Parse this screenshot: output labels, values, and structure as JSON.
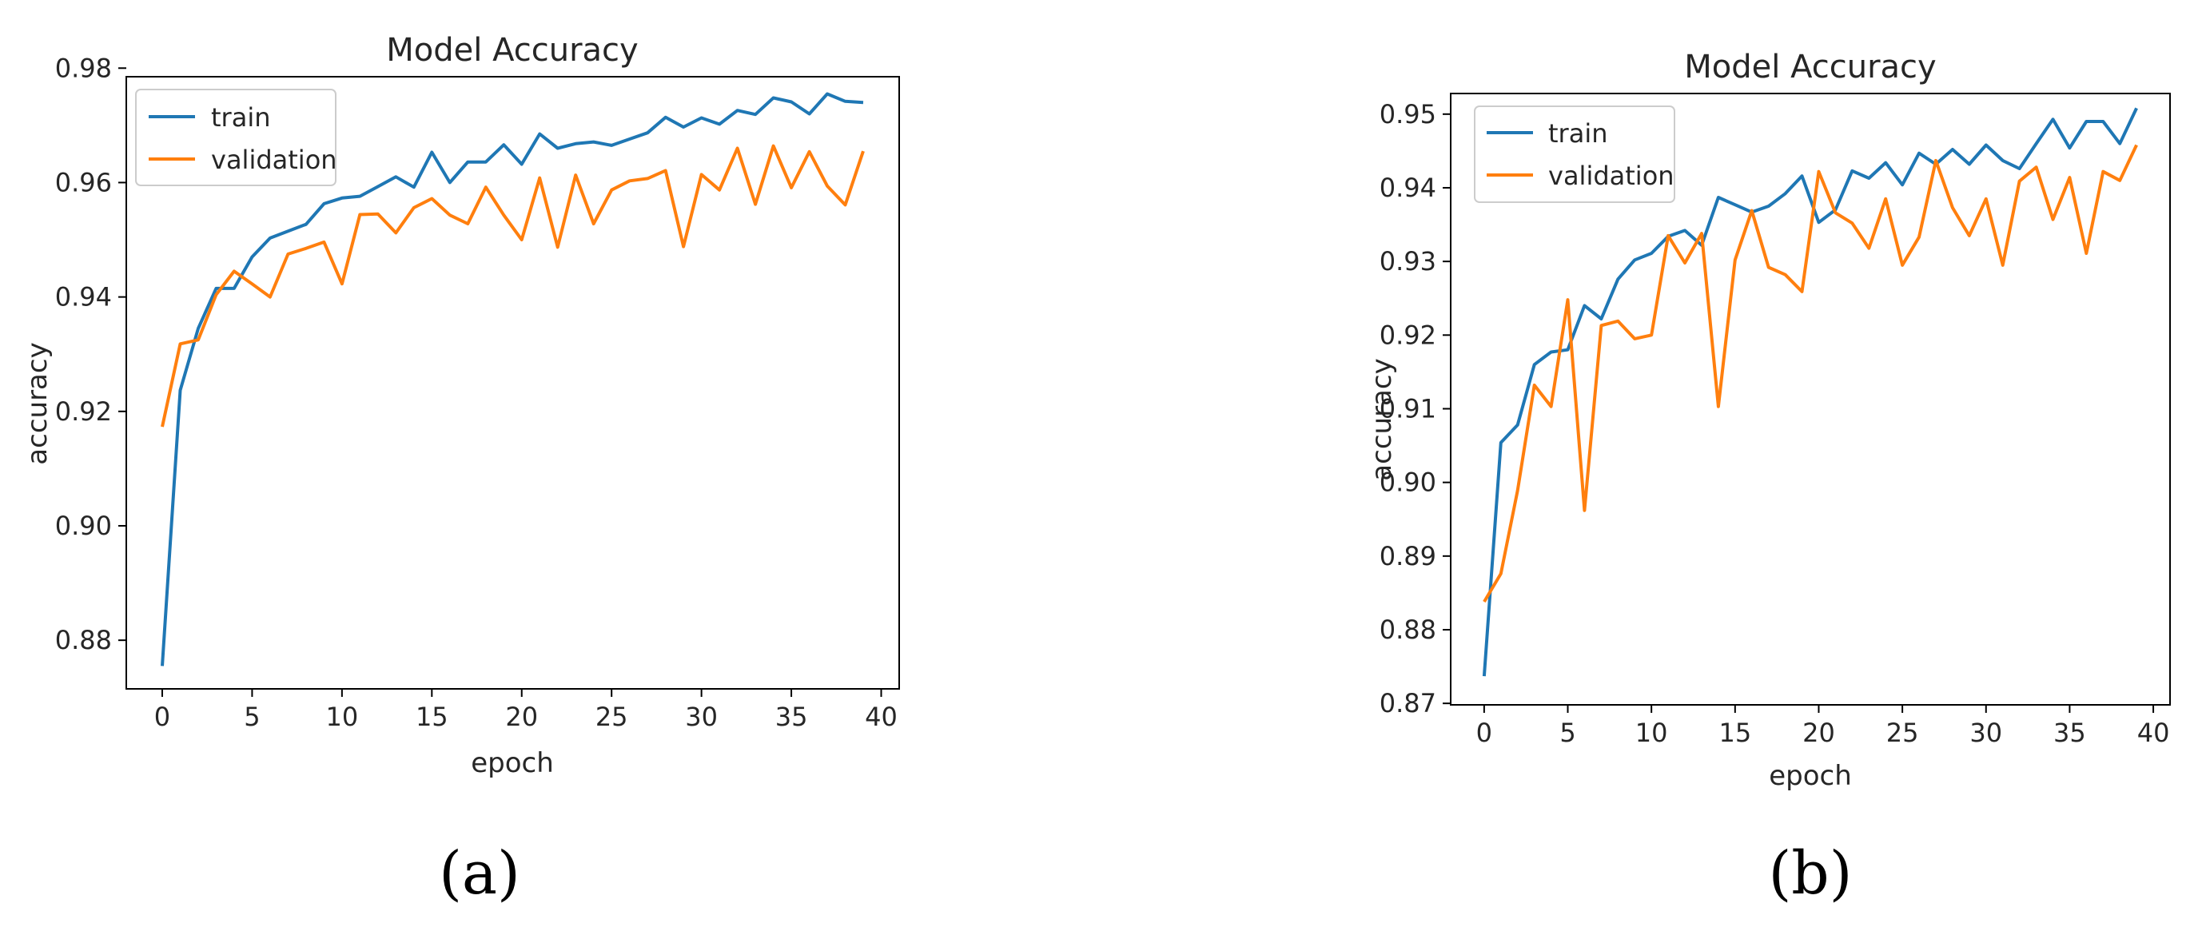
{
  "colors": {
    "train": "#1f77b4",
    "validation": "#ff7f0e"
  },
  "chart_data": [
    {
      "type": "line",
      "title": "Model Accuracy",
      "xlabel": "epoch",
      "ylabel": "accuracy",
      "xlim": [
        -2,
        41
      ],
      "ylim": [
        0.8715,
        0.9785
      ],
      "xticks": [
        0,
        5,
        10,
        15,
        20,
        25,
        30,
        35,
        40
      ],
      "yticks": [
        0.88,
        0.9,
        0.92,
        0.94,
        0.96,
        0.98
      ],
      "ytick_labels": [
        "0.88",
        "0.90",
        "0.92",
        "0.94",
        "0.96",
        "0.98"
      ],
      "legend_placement": "upper-left",
      "caption": "(a)",
      "x": [
        0,
        1,
        2,
        3,
        4,
        5,
        6,
        7,
        8,
        9,
        10,
        11,
        12,
        13,
        14,
        15,
        16,
        17,
        18,
        19,
        20,
        21,
        22,
        23,
        24,
        25,
        26,
        27,
        28,
        29,
        30,
        31,
        32,
        33,
        34,
        35,
        36,
        37,
        38,
        39
      ],
      "series": [
        {
          "name": "train",
          "color": "#1f77b4",
          "values": [
            0.8755,
            0.9237,
            0.9345,
            0.9415,
            0.9415,
            0.947,
            0.9503,
            0.9515,
            0.9527,
            0.9563,
            0.9573,
            0.9576,
            0.9593,
            0.961,
            0.9592,
            0.9653,
            0.96,
            0.9636,
            0.9636,
            0.9666,
            0.9632,
            0.9685,
            0.966,
            0.9668,
            0.9671,
            0.9665,
            0.9676,
            0.9687,
            0.9714,
            0.9697,
            0.9713,
            0.9702,
            0.9726,
            0.9719,
            0.9748,
            0.9741,
            0.972,
            0.9755,
            0.9742,
            0.974
          ]
        },
        {
          "name": "validation",
          "color": "#ff7f0e",
          "values": [
            0.9173,
            0.9318,
            0.9325,
            0.9404,
            0.9445,
            0.9423,
            0.94,
            0.9475,
            0.9485,
            0.9496,
            0.9423,
            0.9544,
            0.9545,
            0.9512,
            0.9556,
            0.9572,
            0.9543,
            0.9528,
            0.9592,
            0.9543,
            0.95,
            0.9608,
            0.9487,
            0.9613,
            0.9528,
            0.9587,
            0.9603,
            0.9607,
            0.9621,
            0.9488,
            0.9614,
            0.9587,
            0.966,
            0.9562,
            0.9664,
            0.9591,
            0.9654,
            0.9594,
            0.9561,
            0.9655
          ]
        }
      ]
    },
    {
      "type": "line",
      "title": "Model Accuracy",
      "xlabel": "epoch",
      "ylabel": "accuracy",
      "xlim": [
        -2,
        41
      ],
      "ylim": [
        0.8698,
        0.9528
      ],
      "xticks": [
        0,
        5,
        10,
        15,
        20,
        25,
        30,
        35,
        40
      ],
      "yticks": [
        0.87,
        0.88,
        0.89,
        0.9,
        0.91,
        0.92,
        0.93,
        0.94,
        0.95
      ],
      "ytick_labels": [
        "0.87",
        "0.88",
        "0.89",
        "0.90",
        "0.91",
        "0.92",
        "0.93",
        "0.94",
        "0.95"
      ],
      "legend_placement": "upper-left",
      "caption": "(b)",
      "x": [
        0,
        1,
        2,
        3,
        4,
        5,
        6,
        7,
        8,
        9,
        10,
        11,
        12,
        13,
        14,
        15,
        16,
        17,
        18,
        19,
        20,
        21,
        22,
        23,
        24,
        25,
        26,
        27,
        28,
        29,
        30,
        31,
        32,
        33,
        34,
        35,
        36,
        37,
        38,
        39
      ],
      "series": [
        {
          "name": "train",
          "color": "#1f77b4",
          "values": [
            0.8737,
            0.9054,
            0.9078,
            0.916,
            0.9177,
            0.918,
            0.924,
            0.9222,
            0.9276,
            0.9302,
            0.9311,
            0.9334,
            0.9342,
            0.9322,
            0.9387,
            0.9377,
            0.9367,
            0.9375,
            0.9392,
            0.9416,
            0.9353,
            0.937,
            0.9423,
            0.9413,
            0.9434,
            0.9404,
            0.9447,
            0.9432,
            0.9452,
            0.9432,
            0.9458,
            0.9437,
            0.9426,
            0.946,
            0.9493,
            0.9454,
            0.949,
            0.949,
            0.946,
            0.9508
          ]
        },
        {
          "name": "validation",
          "color": "#ff7f0e",
          "values": [
            0.8838,
            0.8876,
            0.8989,
            0.9132,
            0.9103,
            0.9248,
            0.8962,
            0.9213,
            0.9219,
            0.9195,
            0.92,
            0.9335,
            0.9298,
            0.9338,
            0.9103,
            0.9302,
            0.9369,
            0.9292,
            0.9282,
            0.9259,
            0.9422,
            0.9366,
            0.9352,
            0.9318,
            0.9385,
            0.9295,
            0.9333,
            0.9437,
            0.9373,
            0.9335,
            0.9385,
            0.9295,
            0.9409,
            0.9428,
            0.9357,
            0.9414,
            0.9311,
            0.9422,
            0.941,
            0.9458
          ]
        }
      ]
    }
  ]
}
